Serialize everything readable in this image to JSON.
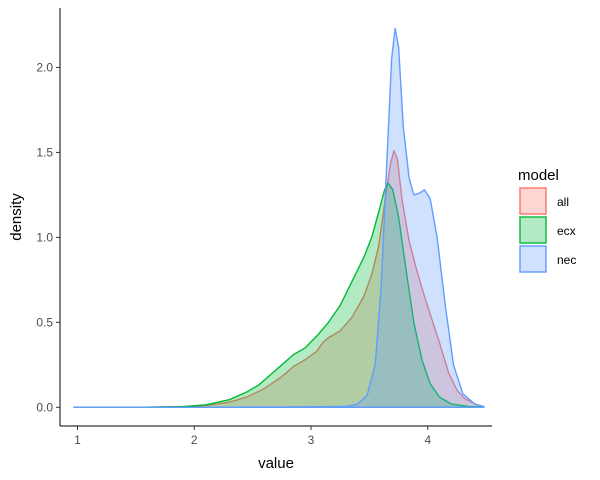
{
  "chart_data": {
    "type": "area",
    "subtype": "density",
    "title": "",
    "xlabel": "value",
    "ylabel": "density",
    "xlim": [
      0.85,
      4.55
    ],
    "ylim": [
      -0.11,
      2.35
    ],
    "x_ticks": [
      1,
      2,
      3,
      4
    ],
    "x_tick_labels": [
      "1",
      "2",
      "3",
      "4"
    ],
    "y_ticks": [
      0,
      0.5,
      1,
      1.5,
      2
    ],
    "y_tick_labels": [
      "0.0",
      "0.5",
      "1.0",
      "1.5",
      "2.0"
    ],
    "grid": false,
    "legend": {
      "title": "model",
      "position": "right"
    },
    "series": [
      {
        "name": "all",
        "color": "#F8766D",
        "fill": "#F8766D",
        "points": [
          [
            0.97,
            0
          ],
          [
            1.5,
            0
          ],
          [
            1.9,
            0.003
          ],
          [
            2.1,
            0.01
          ],
          [
            2.3,
            0.03
          ],
          [
            2.45,
            0.06
          ],
          [
            2.6,
            0.11
          ],
          [
            2.75,
            0.18
          ],
          [
            2.85,
            0.24
          ],
          [
            2.95,
            0.28
          ],
          [
            3.05,
            0.33
          ],
          [
            3.1,
            0.38
          ],
          [
            3.15,
            0.41
          ],
          [
            3.25,
            0.45
          ],
          [
            3.35,
            0.53
          ],
          [
            3.45,
            0.65
          ],
          [
            3.52,
            0.78
          ],
          [
            3.58,
            0.95
          ],
          [
            3.63,
            1.2
          ],
          [
            3.68,
            1.43
          ],
          [
            3.71,
            1.51
          ],
          [
            3.74,
            1.46
          ],
          [
            3.78,
            1.22
          ],
          [
            3.84,
            0.98
          ],
          [
            3.9,
            0.82
          ],
          [
            3.96,
            0.68
          ],
          [
            4.02,
            0.55
          ],
          [
            4.1,
            0.38
          ],
          [
            4.18,
            0.2
          ],
          [
            4.25,
            0.1
          ],
          [
            4.32,
            0.05
          ],
          [
            4.42,
            0.015
          ],
          [
            4.48,
            0.005
          ]
        ]
      },
      {
        "name": "ecx",
        "color": "#00BA38",
        "fill": "#00BA38",
        "points": [
          [
            0.97,
            0
          ],
          [
            1.5,
            0
          ],
          [
            1.9,
            0.004
          ],
          [
            2.1,
            0.015
          ],
          [
            2.3,
            0.045
          ],
          [
            2.45,
            0.09
          ],
          [
            2.55,
            0.13
          ],
          [
            2.65,
            0.19
          ],
          [
            2.75,
            0.25
          ],
          [
            2.85,
            0.31
          ],
          [
            2.95,
            0.35
          ],
          [
            3.05,
            0.42
          ],
          [
            3.15,
            0.5
          ],
          [
            3.25,
            0.6
          ],
          [
            3.35,
            0.74
          ],
          [
            3.45,
            0.88
          ],
          [
            3.52,
            1.0
          ],
          [
            3.58,
            1.15
          ],
          [
            3.63,
            1.28
          ],
          [
            3.66,
            1.32
          ],
          [
            3.7,
            1.28
          ],
          [
            3.75,
            1.12
          ],
          [
            3.82,
            0.78
          ],
          [
            3.88,
            0.5
          ],
          [
            3.95,
            0.28
          ],
          [
            4.02,
            0.14
          ],
          [
            4.1,
            0.06
          ],
          [
            4.2,
            0.02
          ],
          [
            4.35,
            0.005
          ],
          [
            4.48,
            0.001
          ]
        ]
      },
      {
        "name": "nec",
        "color": "#619CFF",
        "fill": "#619CFF",
        "points": [
          [
            0.97,
            0
          ],
          [
            2.0,
            0
          ],
          [
            3.0,
            0.003
          ],
          [
            3.3,
            0.005
          ],
          [
            3.4,
            0.02
          ],
          [
            3.48,
            0.07
          ],
          [
            3.55,
            0.25
          ],
          [
            3.6,
            0.7
          ],
          [
            3.65,
            1.45
          ],
          [
            3.69,
            2.05
          ],
          [
            3.72,
            2.23
          ],
          [
            3.75,
            2.12
          ],
          [
            3.79,
            1.65
          ],
          [
            3.84,
            1.35
          ],
          [
            3.88,
            1.25
          ],
          [
            3.93,
            1.26
          ],
          [
            3.97,
            1.28
          ],
          [
            4.02,
            1.23
          ],
          [
            4.08,
            1.0
          ],
          [
            4.15,
            0.6
          ],
          [
            4.22,
            0.25
          ],
          [
            4.3,
            0.08
          ],
          [
            4.4,
            0.02
          ],
          [
            4.48,
            0.005
          ]
        ]
      }
    ]
  }
}
